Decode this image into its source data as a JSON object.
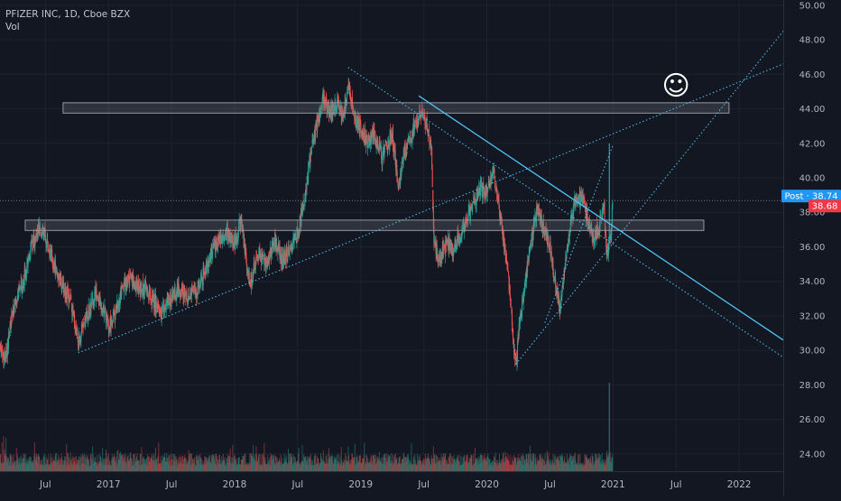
{
  "header": {
    "symbol": "PFIZER INC, 1D, Cboe BZX",
    "volume_label": "Vol"
  },
  "chart_data": {
    "type": "candlestick",
    "y_ticks": [
      "24.00",
      "26.00",
      "28.00",
      "30.00",
      "32.00",
      "34.00",
      "36.00",
      "38.00",
      "40.00",
      "42.00",
      "44.00",
      "46.00",
      "48.00",
      "50.00"
    ],
    "x_ticks": [
      "Jul",
      "2017",
      "Jul",
      "2018",
      "Jul",
      "2019",
      "Jul",
      "2020",
      "Jul",
      "2021",
      "Jul",
      "2022"
    ],
    "x_tick_times": [
      2016.5,
      2017.0,
      2017.5,
      2018.0,
      2018.5,
      2019.0,
      2019.5,
      2020.0,
      2020.5,
      2021.0,
      2021.5,
      2022.0
    ],
    "ylim": [
      23.0,
      50.2
    ],
    "xlim": [
      2016.14,
      2022.35
    ],
    "price_labels": [
      {
        "text": "Post · 38.74",
        "value": 38.74,
        "color": "#2196f3"
      },
      {
        "text": "38.68",
        "value": 38.68,
        "color": "#f23645"
      }
    ],
    "close_line": {
      "value": 38.68,
      "color": "#787b86"
    },
    "colors": {
      "up": "#26a69a",
      "down": "#ef5350",
      "trendline": "#4fc3f7",
      "background": "#131722"
    },
    "price_path": [
      [
        2016.14,
        30.0
      ],
      [
        2016.18,
        29.6
      ],
      [
        2016.25,
        32.5
      ],
      [
        2016.32,
        34.0
      ],
      [
        2016.4,
        36.2
      ],
      [
        2016.45,
        37.2
      ],
      [
        2016.5,
        36.5
      ],
      [
        2016.56,
        35.2
      ],
      [
        2016.62,
        34.0
      ],
      [
        2016.7,
        32.8
      ],
      [
        2016.76,
        30.6
      ],
      [
        2016.82,
        31.8
      ],
      [
        2016.9,
        33.2
      ],
      [
        2016.96,
        32.5
      ],
      [
        2017.0,
        31.2
      ],
      [
        2017.07,
        32.6
      ],
      [
        2017.15,
        34.2
      ],
      [
        2017.22,
        33.8
      ],
      [
        2017.3,
        33.5
      ],
      [
        2017.36,
        32.8
      ],
      [
        2017.42,
        32.2
      ],
      [
        2017.48,
        32.9
      ],
      [
        2017.55,
        33.6
      ],
      [
        2017.62,
        33.2
      ],
      [
        2017.7,
        33.4
      ],
      [
        2017.76,
        34.6
      ],
      [
        2017.82,
        35.8
      ],
      [
        2017.88,
        36.5
      ],
      [
        2017.94,
        36.8
      ],
      [
        2018.0,
        36.2
      ],
      [
        2018.05,
        37.4
      ],
      [
        2018.08,
        36.0
      ],
      [
        2018.12,
        33.8
      ],
      [
        2018.18,
        35.6
      ],
      [
        2018.25,
        35.0
      ],
      [
        2018.32,
        36.4
      ],
      [
        2018.38,
        35.2
      ],
      [
        2018.45,
        36.0
      ],
      [
        2018.5,
        36.8
      ],
      [
        2018.55,
        38.5
      ],
      [
        2018.6,
        41.2
      ],
      [
        2018.65,
        43.0
      ],
      [
        2018.7,
        44.6
      ],
      [
        2018.76,
        43.8
      ],
      [
        2018.82,
        44.4
      ],
      [
        2018.86,
        43.5
      ],
      [
        2018.9,
        45.5
      ],
      [
        2018.95,
        43.6
      ],
      [
        2019.0,
        42.8
      ],
      [
        2019.05,
        42.0
      ],
      [
        2019.1,
        42.6
      ],
      [
        2019.17,
        41.2
      ],
      [
        2019.25,
        42.6
      ],
      [
        2019.3,
        39.5
      ],
      [
        2019.35,
        41.5
      ],
      [
        2019.42,
        42.8
      ],
      [
        2019.47,
        43.8
      ],
      [
        2019.52,
        43.2
      ],
      [
        2019.56,
        41.8
      ],
      [
        2019.58,
        36.5
      ],
      [
        2019.62,
        35.0
      ],
      [
        2019.68,
        36.3
      ],
      [
        2019.73,
        35.8
      ],
      [
        2019.8,
        37.0
      ],
      [
        2019.85,
        37.8
      ],
      [
        2019.9,
        38.8
      ],
      [
        2019.95,
        39.5
      ],
      [
        2020.0,
        39.0
      ],
      [
        2020.05,
        40.5
      ],
      [
        2020.09,
        38.5
      ],
      [
        2020.14,
        36.0
      ],
      [
        2020.18,
        33.5
      ],
      [
        2020.21,
        30.5
      ],
      [
        2020.23,
        29.2
      ],
      [
        2020.26,
        31.5
      ],
      [
        2020.3,
        33.8
      ],
      [
        2020.35,
        36.2
      ],
      [
        2020.4,
        38.2
      ],
      [
        2020.45,
        37.0
      ],
      [
        2020.5,
        36.0
      ],
      [
        2020.54,
        34.0
      ],
      [
        2020.58,
        32.5
      ],
      [
        2020.62,
        34.8
      ],
      [
        2020.66,
        37.2
      ],
      [
        2020.7,
        38.6
      ],
      [
        2020.75,
        38.8
      ],
      [
        2020.8,
        37.5
      ],
      [
        2020.85,
        36.5
      ],
      [
        2020.89,
        37.2
      ],
      [
        2020.93,
        38.2
      ],
      [
        2020.95,
        35.2
      ],
      [
        2020.98,
        36.6
      ],
      [
        2021.0,
        38.7
      ]
    ],
    "annotations": [
      {
        "kind": "rectangle",
        "name": "resistance-zone-upper",
        "x0": 2016.64,
        "x1": 2021.92,
        "y0": 43.75,
        "y1": 44.35
      },
      {
        "kind": "rectangle",
        "name": "support-zone-lower",
        "x0": 2016.34,
        "x1": 2021.72,
        "y0": 36.95,
        "y1": 37.55
      },
      {
        "kind": "line",
        "name": "long-rising-trendline",
        "style": "dotted",
        "points": [
          [
            2016.76,
            29.85
          ],
          [
            2022.35,
            46.6
          ]
        ]
      },
      {
        "kind": "line",
        "name": "falling-resistance-dotted",
        "style": "dotted",
        "points": [
          [
            2018.9,
            46.4
          ],
          [
            2022.35,
            29.6
          ]
        ]
      },
      {
        "kind": "line",
        "name": "falling-channel-solid",
        "style": "solid",
        "points": [
          [
            2019.46,
            44.75
          ],
          [
            2022.35,
            30.6
          ]
        ]
      },
      {
        "kind": "line",
        "name": "steep-rising-trendline",
        "style": "dotted",
        "points": [
          [
            2020.23,
            29.2
          ],
          [
            2022.35,
            48.5
          ]
        ]
      },
      {
        "kind": "line",
        "name": "covid-low-trendline",
        "style": "dotted",
        "points": [
          [
            2020.46,
            31.6
          ],
          [
            2021.0,
            41.9
          ]
        ]
      }
    ],
    "smiley": {
      "time": 2021.5,
      "value": 45.4
    },
    "volume_spike_time": 2020.97
  }
}
